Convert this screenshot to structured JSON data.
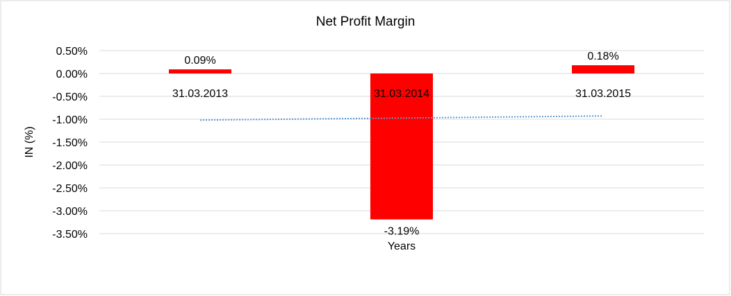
{
  "chart_data": {
    "type": "bar",
    "title": "Net Profit Margin",
    "xlabel": "Years",
    "ylabel": "IN (%)",
    "categories": [
      "31.03.2013",
      "31.03.2014",
      "31.03.2015"
    ],
    "series": [
      {
        "name": "Net Profit Margin",
        "values": [
          0.09,
          -3.19,
          0.18
        ],
        "data_labels": [
          "0.09%",
          "-3.19%",
          "0.18%"
        ],
        "color": "#ff0000"
      }
    ],
    "trendline": {
      "type": "linear",
      "color": "#5b9bd5",
      "style": "dotted"
    },
    "ylim": [
      -3.5,
      0.5
    ],
    "yticks": [
      0.5,
      0.0,
      -0.5,
      -1.0,
      -1.5,
      -2.0,
      -2.5,
      -3.0,
      -3.5
    ],
    "ytick_labels": [
      "0.50%",
      "0.00%",
      "-0.50%",
      "-1.00%",
      "-1.50%",
      "-2.00%",
      "-2.50%",
      "-3.00%",
      "-3.50%"
    ],
    "grid": true,
    "legend": "none"
  }
}
